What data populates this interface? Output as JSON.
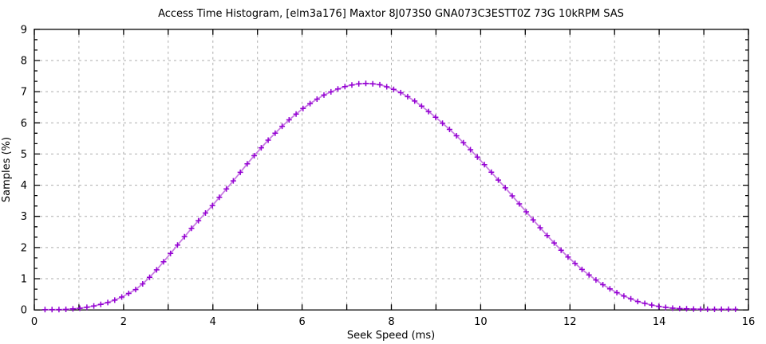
{
  "page": {
    "background": "#ffffff"
  },
  "chart_data": {
    "type": "line",
    "style": "linespoints",
    "title": "Access Time Histogram, [elm3a176] Maxtor 8J073S0 GNA073C3ESTT0Z 73G 10kRPM SAS",
    "xlabel": "Seek Speed (ms)",
    "ylabel": "Samples (%)",
    "xlim": [
      0,
      16
    ],
    "ylim": [
      0,
      9
    ],
    "grid": "dashed",
    "grid_color": "#adadad",
    "frame_color": "#000000",
    "x_tick_labels": [
      "0",
      "2",
      "4",
      "6",
      "8",
      "10",
      "12",
      "14",
      "16"
    ],
    "x_label_every": 2,
    "x_major_tick_step": 1,
    "y_tick_labels": [
      "0",
      "1",
      "2",
      "3",
      "4",
      "5",
      "6",
      "7",
      "8",
      "9"
    ],
    "y_major_tick_step": 1,
    "y_minor_per_major": 3,
    "legend": "none",
    "series": [
      {
        "name": "access-time-histogram",
        "marker": "plus",
        "line_color": "#c87ce3",
        "marker_color": "#9400d3",
        "marker_x_start": 0.24,
        "marker_x_step": 0.15625,
        "marker_count": 100,
        "points": [
          [
            0.25,
            0.01
          ],
          [
            0.5,
            0.01
          ],
          [
            0.75,
            0.02
          ],
          [
            1.0,
            0.05
          ],
          [
            1.25,
            0.1
          ],
          [
            1.5,
            0.18
          ],
          [
            1.75,
            0.28
          ],
          [
            2.0,
            0.44
          ],
          [
            2.25,
            0.63
          ],
          [
            2.5,
            0.92
          ],
          [
            2.75,
            1.3
          ],
          [
            3.0,
            1.72
          ],
          [
            3.25,
            2.15
          ],
          [
            3.5,
            2.58
          ],
          [
            3.75,
            2.98
          ],
          [
            4.0,
            3.36
          ],
          [
            4.25,
            3.79
          ],
          [
            4.5,
            4.21
          ],
          [
            4.75,
            4.65
          ],
          [
            5.0,
            5.07
          ],
          [
            5.25,
            5.46
          ],
          [
            5.5,
            5.82
          ],
          [
            5.75,
            6.15
          ],
          [
            6.0,
            6.44
          ],
          [
            6.25,
            6.69
          ],
          [
            6.5,
            6.9
          ],
          [
            6.75,
            7.06
          ],
          [
            7.0,
            7.18
          ],
          [
            7.25,
            7.25
          ],
          [
            7.5,
            7.27
          ],
          [
            7.75,
            7.22
          ],
          [
            8.0,
            7.11
          ],
          [
            8.25,
            6.94
          ],
          [
            8.5,
            6.72
          ],
          [
            8.75,
            6.46
          ],
          [
            9.0,
            6.17
          ],
          [
            9.25,
            5.86
          ],
          [
            9.5,
            5.53
          ],
          [
            9.75,
            5.17
          ],
          [
            10.0,
            4.79
          ],
          [
            10.25,
            4.4
          ],
          [
            10.5,
            4.0
          ],
          [
            10.75,
            3.59
          ],
          [
            11.0,
            3.18
          ],
          [
            11.25,
            2.77
          ],
          [
            11.5,
            2.37
          ],
          [
            11.75,
            1.99
          ],
          [
            12.0,
            1.64
          ],
          [
            12.25,
            1.32
          ],
          [
            12.5,
            1.04
          ],
          [
            12.75,
            0.8
          ],
          [
            13.0,
            0.59
          ],
          [
            13.25,
            0.42
          ],
          [
            13.5,
            0.28
          ],
          [
            13.75,
            0.18
          ],
          [
            14.0,
            0.11
          ],
          [
            14.25,
            0.06
          ],
          [
            14.5,
            0.04
          ],
          [
            14.75,
            0.03
          ],
          [
            15.0,
            0.02
          ],
          [
            15.25,
            0.02
          ],
          [
            15.5,
            0.02
          ],
          [
            15.75,
            0.02
          ]
        ]
      }
    ]
  }
}
